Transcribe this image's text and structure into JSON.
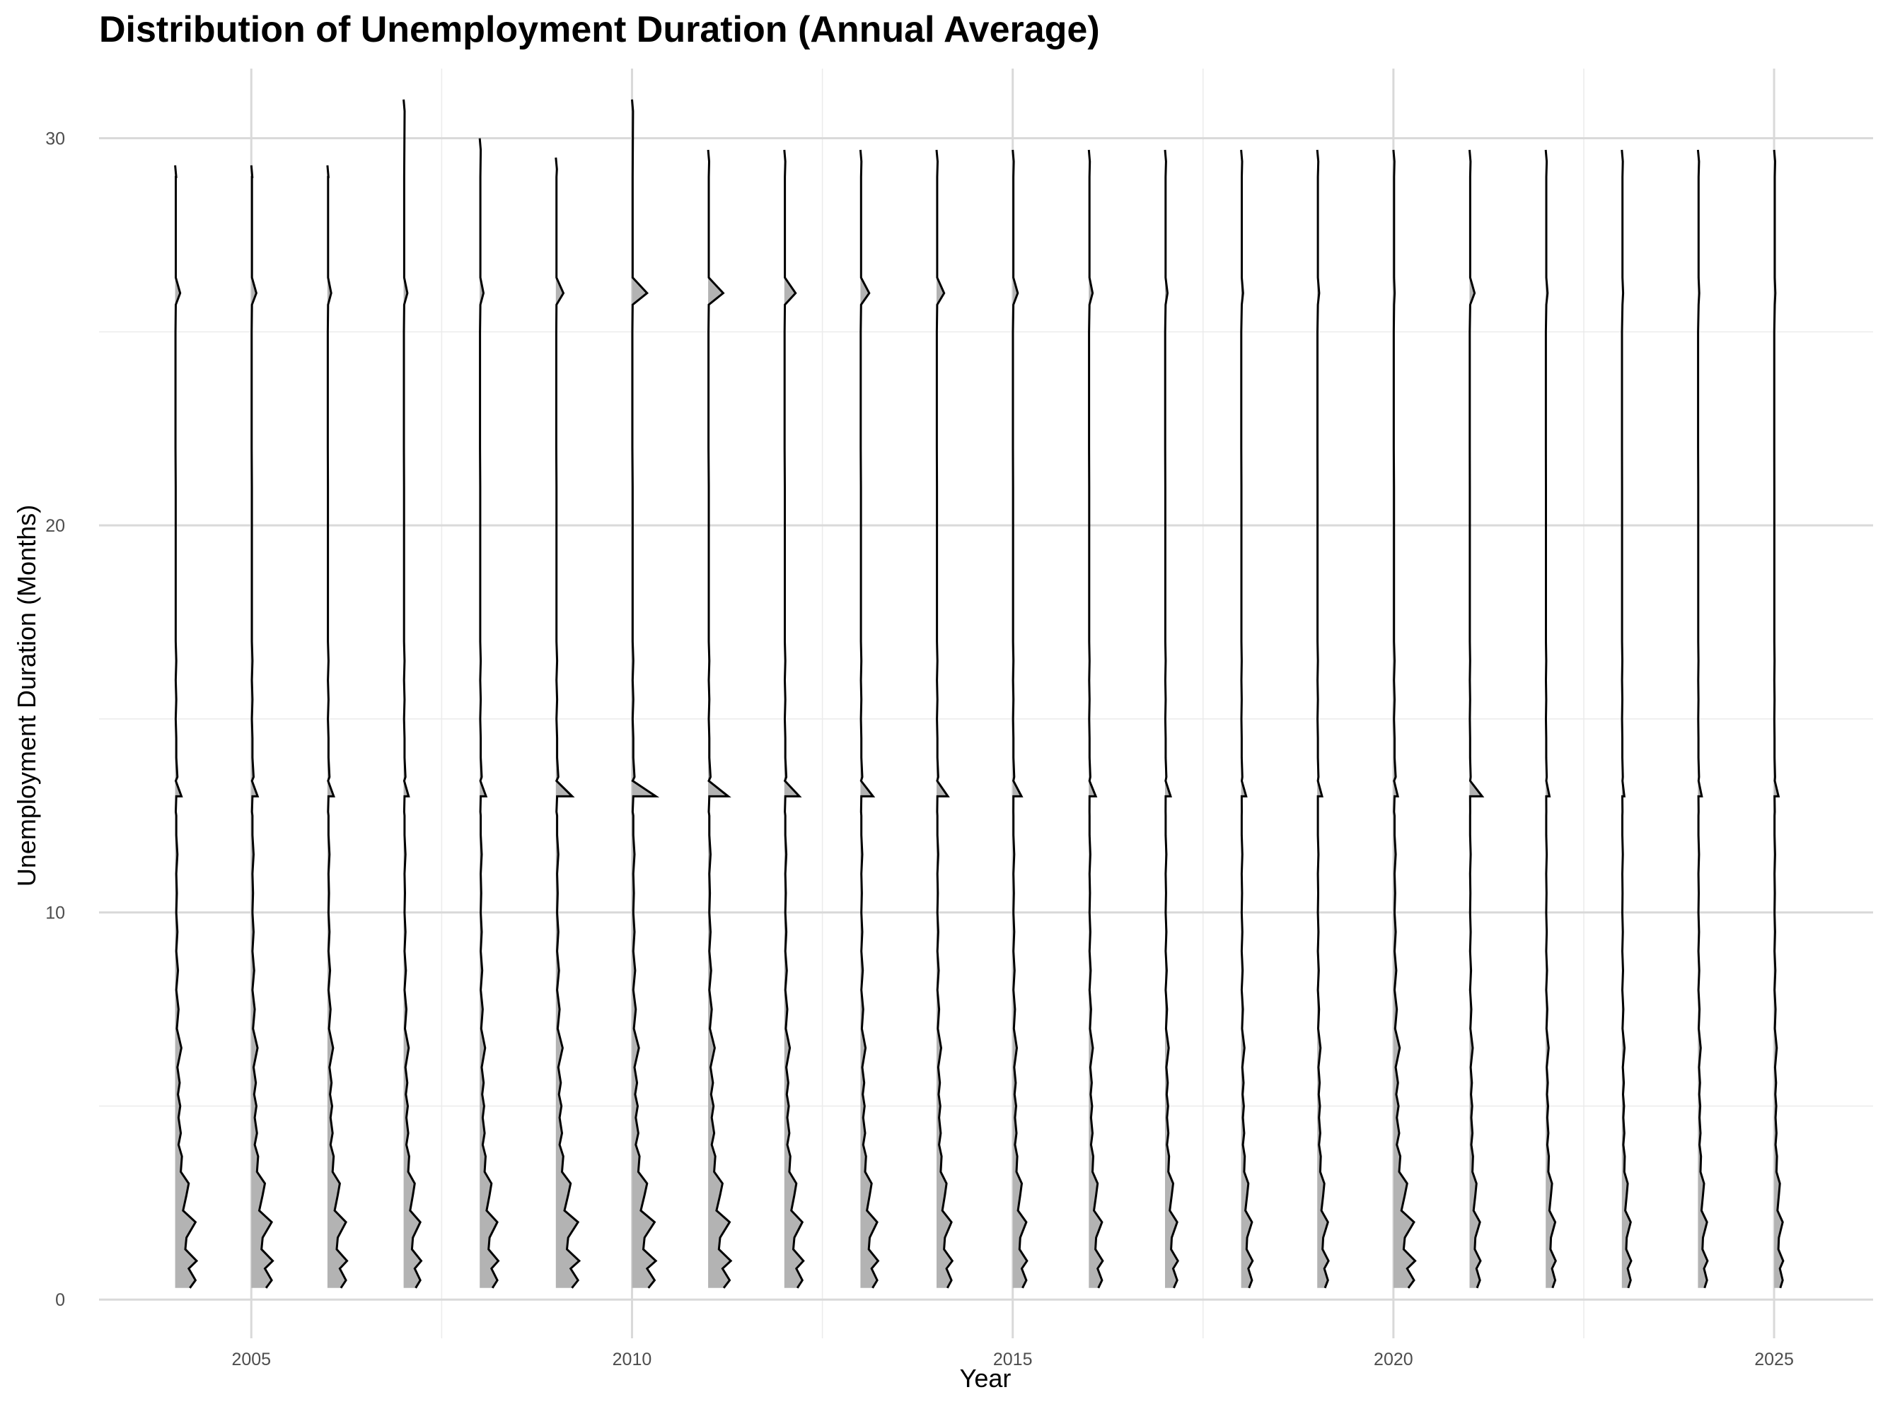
{
  "chart_data": {
    "type": "area",
    "title": "Distribution of Unemployment Duration (Annual Average)",
    "xlabel": "Year",
    "ylabel": "Unemployment Duration (Months)",
    "xlim": [
      2003,
      2026.3
    ],
    "ylim": [
      -1.0,
      31.8
    ],
    "x_ticks": [
      2005,
      2010,
      2015,
      2020,
      2025
    ],
    "y_ticks": [
      0,
      10,
      20,
      30
    ],
    "grid": true,
    "fill_color": "#b3b3b3",
    "line_color": "#000000",
    "years": [
      2004,
      2005,
      2006,
      2007,
      2008,
      2009,
      2010,
      2011,
      2012,
      2013,
      2014,
      2015,
      2016,
      2017,
      2018,
      2019,
      2020,
      2021,
      2022,
      2023,
      2024,
      2025
    ],
    "scale": [
      0.9,
      0.9,
      0.82,
      0.74,
      0.78,
      0.98,
      1.0,
      0.95,
      0.8,
      0.74,
      0.66,
      0.6,
      0.58,
      0.54,
      0.48,
      0.47,
      0.91,
      0.46,
      0.42,
      0.39,
      0.4,
      0.38
    ],
    "top": [
      29.3,
      29.3,
      29.3,
      31.0,
      30.0,
      29.5,
      31.0,
      29.7,
      29.7,
      29.7,
      29.7,
      29.7,
      29.7,
      29.7,
      29.7,
      29.7,
      29.7,
      29.7,
      29.7,
      29.7,
      29.7,
      29.7
    ],
    "spike13": [
      0.5,
      0.5,
      0.5,
      0.4,
      0.5,
      1.3,
      1.9,
      1.6,
      1.2,
      1.0,
      0.9,
      0.7,
      0.55,
      0.45,
      0.4,
      0.38,
      0.35,
      1.0,
      0.3,
      0.2,
      0.3,
      0.35
    ],
    "spike26": [
      0.4,
      0.4,
      0.3,
      0.3,
      0.3,
      0.6,
      1.2,
      1.2,
      0.9,
      0.7,
      0.6,
      0.4,
      0.3,
      0.2,
      0.15,
      0.15,
      0.1,
      0.4,
      0.15,
      0.1,
      0.1,
      0.1
    ],
    "x_grid_minor": [
      2007.5,
      2012.5,
      2017.5,
      2022.5
    ],
    "y_grid_minor": [
      5,
      15,
      25
    ],
    "base_profile": {
      "duration_months": [
        0.3,
        0.5,
        0.8,
        1.0,
        1.3,
        1.6,
        2.0,
        2.3,
        2.7,
        3.0,
        3.3,
        3.7,
        4.0,
        4.3,
        4.7,
        5.0,
        5.3,
        5.6,
        6.0,
        6.5,
        7.0,
        7.5,
        8.0,
        8.5,
        9.0,
        9.5,
        10.0,
        10.5,
        11.0,
        11.5,
        12.0,
        12.5,
        13.0,
        13.5,
        14.0,
        14.5,
        15.0,
        15.5,
        16.0,
        16.5,
        17.0,
        17.5,
        18.0,
        18.5,
        19.0,
        19.5,
        20.0,
        21.0,
        22.0,
        23.0,
        24.0,
        25.0
      ],
      "density": [
        1.3,
        1.8,
        1.2,
        1.9,
        0.9,
        1.0,
        1.8,
        0.7,
        1.0,
        1.2,
        0.5,
        0.6,
        0.3,
        0.5,
        0.3,
        0.45,
        0.25,
        0.4,
        0.2,
        0.55,
        0.15,
        0.3,
        0.1,
        0.25,
        0.1,
        0.2,
        0.1,
        0.15,
        0.1,
        0.2,
        0.1,
        0.1,
        0.1,
        0.2,
        0.1,
        0.1,
        0.05,
        0.1,
        0.05,
        0.1,
        0.05,
        0.05,
        0.05,
        0.05,
        0.05,
        0.05,
        0.05,
        0.05,
        0.03,
        0.03,
        0.03,
        0.03
      ]
    }
  }
}
